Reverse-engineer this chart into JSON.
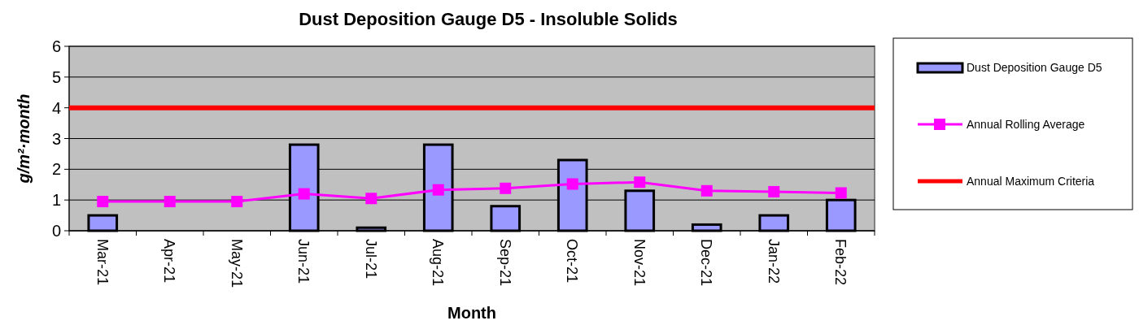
{
  "chart_data": {
    "type": "bar",
    "title": "Dust Deposition Gauge D5 - Insoluble Solids",
    "xlabel": "Month",
    "ylabel": "g/m²·month",
    "categories": [
      "Mar-21",
      "Apr-21",
      "May-21",
      "Jun-21",
      "Jul-21",
      "Aug-21",
      "Sep-21",
      "Oct-21",
      "Nov-21",
      "Dec-21",
      "Jan-22",
      "Feb-22"
    ],
    "series": [
      {
        "name": "Dust Deposition Gauge D5",
        "color": "#9999ff",
        "values": [
          0.5,
          null,
          null,
          2.8,
          0.1,
          2.8,
          0.8,
          2.3,
          1.3,
          0.2,
          0.5,
          1.0
        ]
      },
      {
        "name": "Annual Rolling Average",
        "type": "line",
        "color": "#ff00ff",
        "marker": "square",
        "values": [
          0.95,
          0.95,
          0.95,
          1.2,
          1.05,
          1.33,
          1.38,
          1.52,
          1.58,
          1.3,
          1.27,
          1.23
        ]
      }
    ],
    "ref_lines": [
      {
        "axis": "y",
        "value": 4,
        "label": "Annual Maximum Criteria",
        "color": "#ff0000"
      }
    ],
    "ylim": [
      0,
      6
    ],
    "yticks": [
      0,
      1,
      2,
      3,
      4,
      5,
      6
    ],
    "grid": "y",
    "legend": "right"
  }
}
